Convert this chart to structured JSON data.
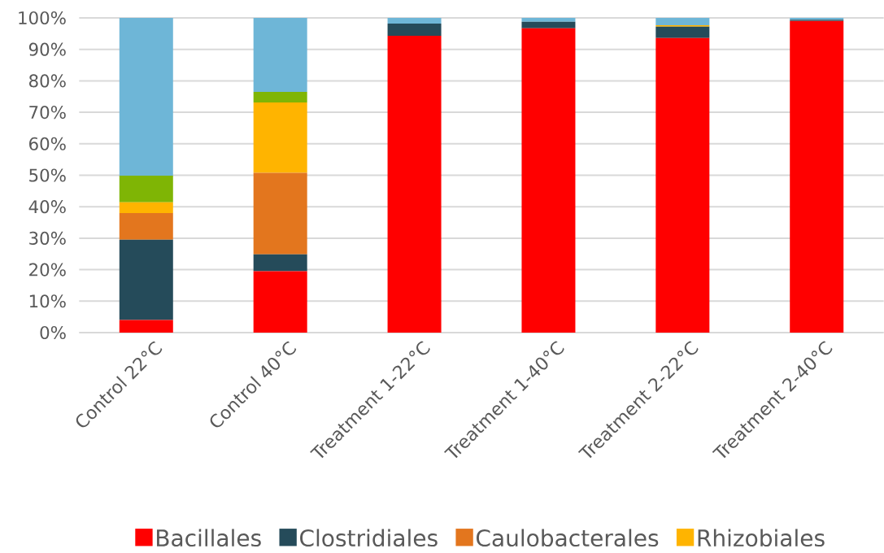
{
  "chart_data": {
    "type": "bar",
    "stacked": true,
    "grid": "y",
    "legend": "bottom",
    "categories": [
      "Control 22°C",
      "Control 40°C",
      "Treatment 1-22°C",
      "Treatment 1-40°C",
      "Treatment 2-22°C",
      "Treatment 2-40°C"
    ],
    "series": [
      {
        "name": "Bacillales",
        "color": "#ff0000",
        "values": [
          4.0,
          19.5,
          94.3,
          96.7,
          93.6,
          99.0
        ]
      },
      {
        "name": "Clostridiales",
        "color": "#254b5a",
        "values": [
          25.5,
          5.4,
          3.9,
          2.1,
          3.6,
          0.4
        ]
      },
      {
        "name": "Caulobacterales",
        "color": "#e3761e",
        "values": [
          8.5,
          25.9,
          0,
          0,
          0,
          0
        ]
      },
      {
        "name": "Rhizobiales",
        "color": "#ffb400",
        "values": [
          3.4,
          22.3,
          0,
          0,
          0.5,
          0
        ]
      },
      {
        "color": "#7fb505",
        "values": [
          8.5,
          3.4,
          0,
          0,
          0,
          0
        ]
      },
      {
        "color": "#6eb6d7",
        "values": [
          50.1,
          23.5,
          1.8,
          1.2,
          2.3,
          0.6
        ]
      }
    ],
    "ylim": [
      0,
      100
    ],
    "yticks": [
      {
        "value": 0,
        "label": "0%"
      },
      {
        "value": 10,
        "label": "10%"
      },
      {
        "value": 20,
        "label": "20%"
      },
      {
        "value": 30,
        "label": "30%"
      },
      {
        "value": 40,
        "label": "40%"
      },
      {
        "value": 50,
        "label": "50%"
      },
      {
        "value": 60,
        "label": "60%"
      },
      {
        "value": 70,
        "label": "70%"
      },
      {
        "value": 80,
        "label": "80%"
      },
      {
        "value": 90,
        "label": "90%"
      },
      {
        "value": 100,
        "label": "100%"
      }
    ]
  }
}
